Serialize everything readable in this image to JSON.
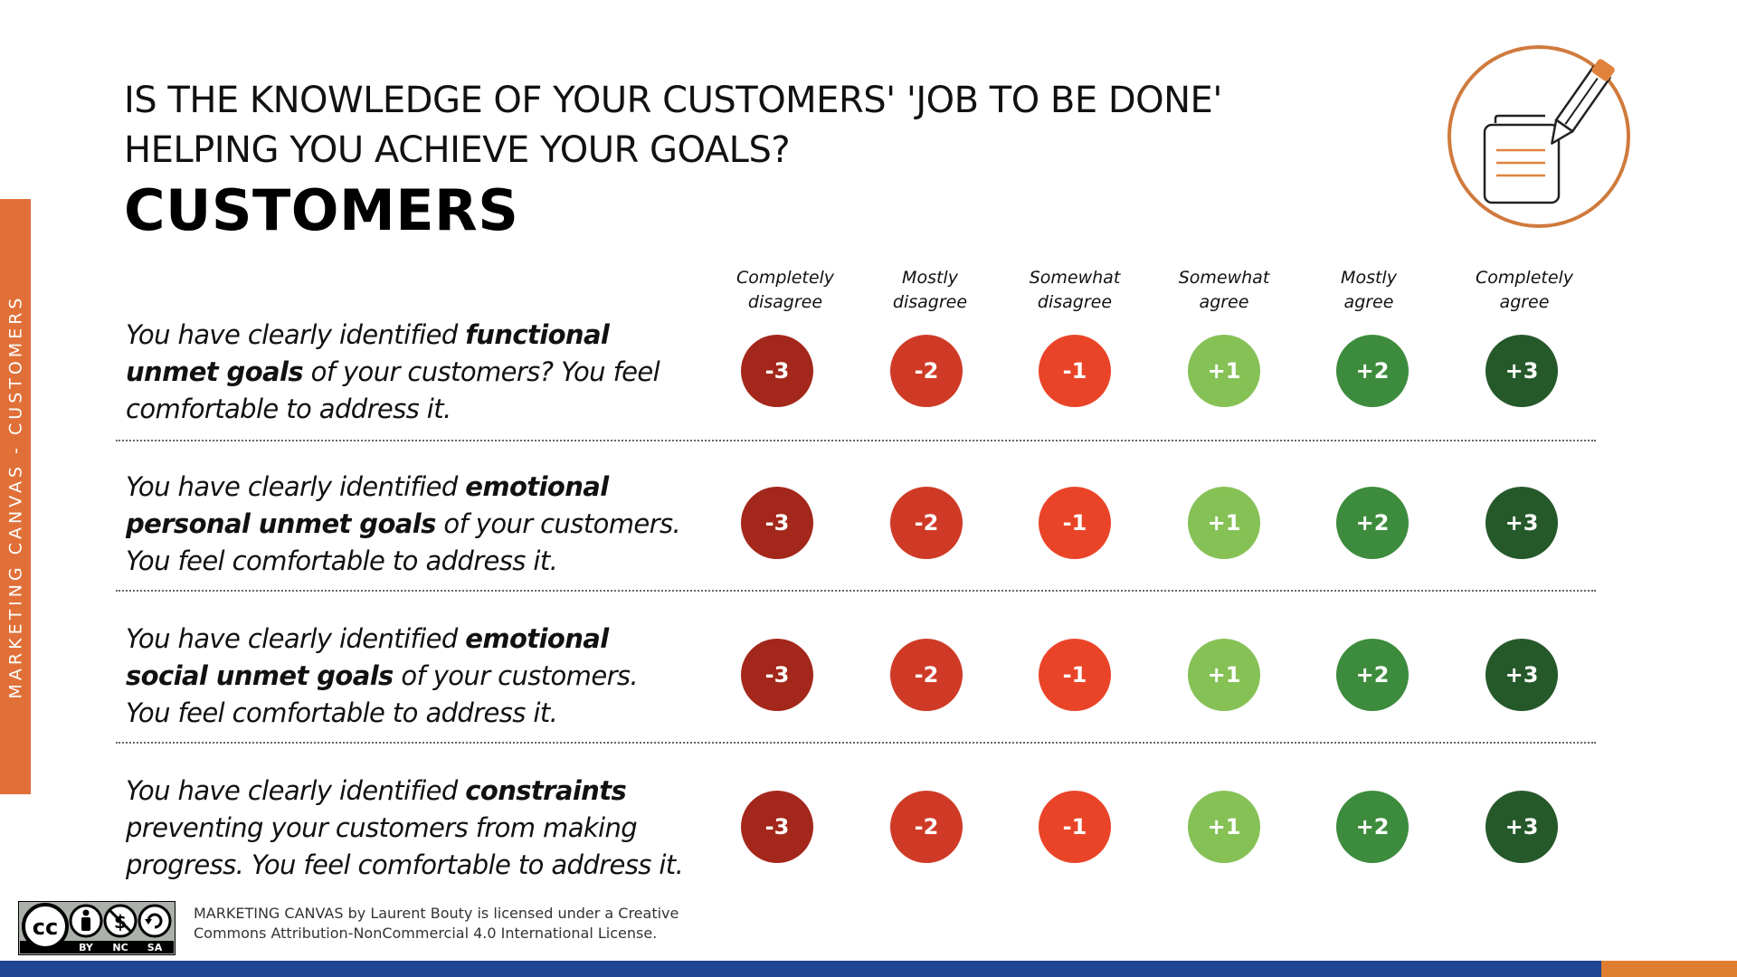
{
  "sidebar": {
    "label": "MARKETING CANVAS - CUSTOMERS",
    "color": "#E07038"
  },
  "header": {
    "question_line1": "IS THE KNOWLEDGE OF YOUR CUSTOMERS' 'JOB TO BE DONE'",
    "question_line2": "HELPING YOU ACHIEVE YOUR GOALS?",
    "section_title": "CUSTOMERS",
    "icon": "notepad-pencil-icon"
  },
  "scale": {
    "labels": [
      {
        "line1": "Completely",
        "line2": "disagree"
      },
      {
        "line1": "Mostly",
        "line2": "disagree"
      },
      {
        "line1": "Somewhat",
        "line2": "disagree"
      },
      {
        "line1": "Somewhat",
        "line2": "agree"
      },
      {
        "line1": "Mostly",
        "line2": "agree"
      },
      {
        "line1": "Completely",
        "line2": "agree"
      }
    ],
    "scores": [
      "-3",
      "-2",
      "-1",
      "+1",
      "+2",
      "+3"
    ],
    "colors": [
      "#A3271B",
      "#CF3A27",
      "#EA4428",
      "#86C156",
      "#3D8C3D",
      "#25592A"
    ]
  },
  "statements": [
    {
      "before": "You have clearly identified ",
      "bold": "functional unmet goals",
      "after": " of your customers? You feel comfortable to address it."
    },
    {
      "before": "You have clearly identified ",
      "bold": "emotional personal unmet goals",
      "after": " of your customers. You feel comfortable to address it."
    },
    {
      "before": "You have clearly identified ",
      "bold": "emotional social unmet goals",
      "after": " of your customers. You feel comfortable to address it."
    },
    {
      "before": "You have clearly identified ",
      "bold": "constraints",
      "after": " preventing your customers from making progress. You feel comfortable to address it."
    }
  ],
  "footer": {
    "license_line1": "MARKETING CANVAS by Laurent Bouty is licensed under a Creative",
    "license_line2": "Commons Attribution-NonCommercial 4.0 International License.",
    "badge_icon": "cc-by-nc-sa-badge-icon",
    "badge_labels": [
      "BY",
      "NC",
      "SA"
    ]
  }
}
